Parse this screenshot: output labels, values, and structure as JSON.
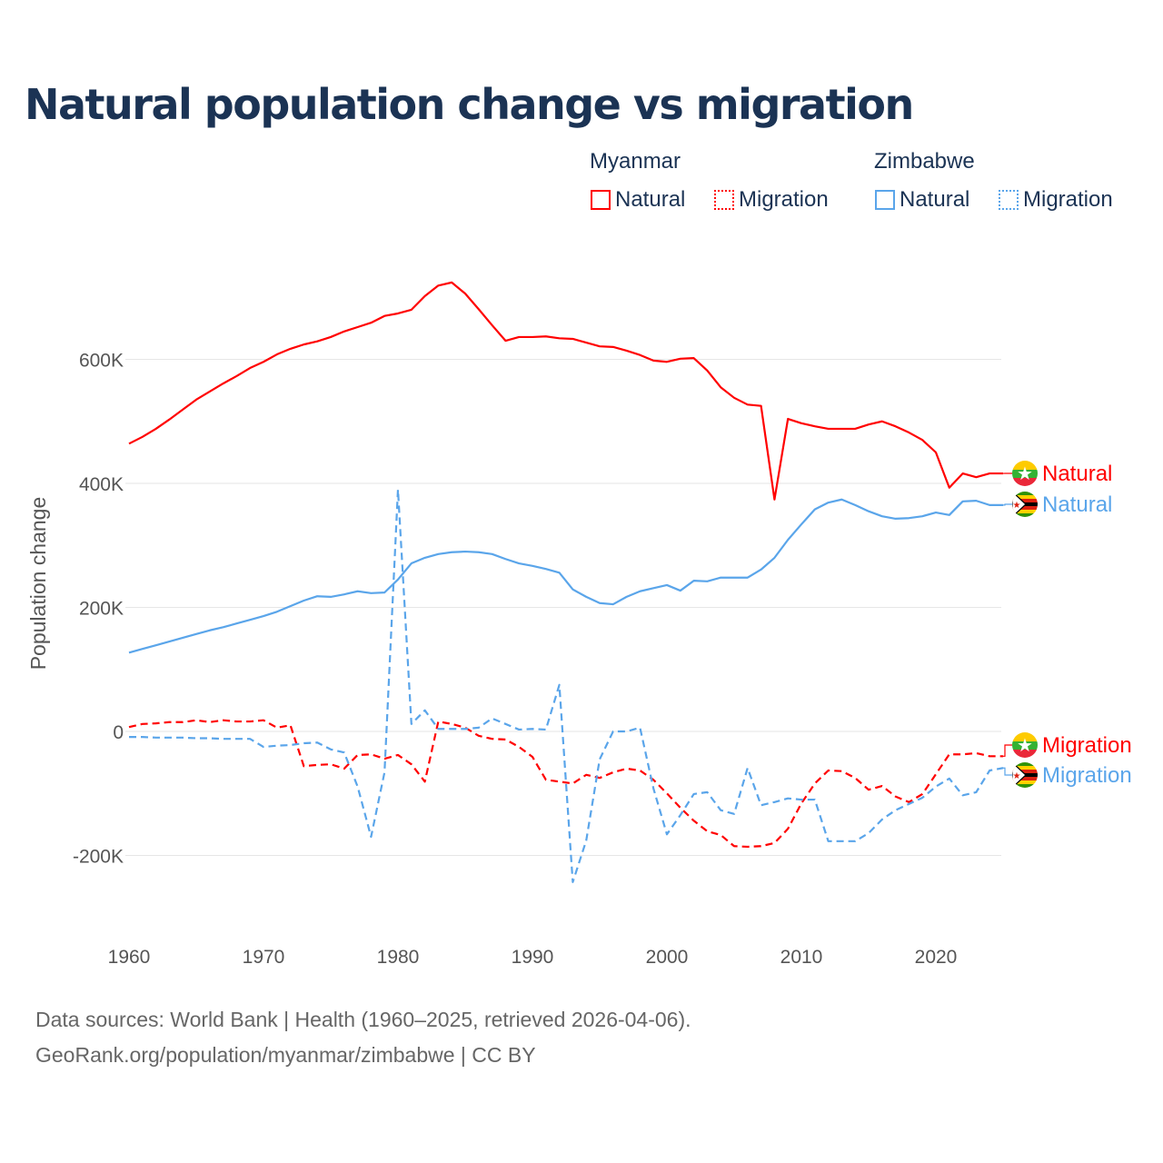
{
  "title": "Natural population change vs migration",
  "legend": {
    "groups": [
      {
        "name": "Myanmar",
        "color": "#ff0000",
        "items": [
          "Natural",
          "Migration"
        ]
      },
      {
        "name": "Zimbabwe",
        "color": "#5aa5ea",
        "items": [
          "Natural",
          "Migration"
        ]
      }
    ]
  },
  "footer": {
    "line1": "Data sources: World Bank | Health (1960–2025, retrieved 2026-04-06).",
    "line2": "GeoRank.org/population/myanmar/zimbabwe | CC BY"
  },
  "chart_data": {
    "type": "line",
    "title": "Natural population change vs migration",
    "xlabel": "",
    "ylabel": "Population change",
    "xlim": [
      1960,
      2025
    ],
    "ylim": [
      -300000,
      750000
    ],
    "x_ticks": [
      1960,
      1970,
      1980,
      1990,
      2000,
      2010,
      2020
    ],
    "y_ticks": [
      {
        "v": -200000,
        "label": "-200K"
      },
      {
        "v": 0,
        "label": "0"
      },
      {
        "v": 200000,
        "label": "200K"
      },
      {
        "v": 400000,
        "label": "400K"
      },
      {
        "v": 600000,
        "label": "600K"
      }
    ],
    "x_start": 1960,
    "series": [
      {
        "name": "Myanmar Natural",
        "end_label": "Natural",
        "color": "#ff0000",
        "dash": false,
        "values_k": [
          464,
          475,
          488,
          503,
          519,
          535,
          548,
          561,
          573,
          586,
          596,
          608,
          617,
          624,
          629,
          636,
          645,
          652,
          659,
          670,
          674,
          680,
          702,
          719,
          724,
          706,
          681,
          655,
          630,
          636,
          636,
          637,
          634,
          633,
          627,
          621,
          620,
          614,
          607,
          598,
          596,
          601,
          602,
          582,
          555,
          538,
          527,
          525,
          374,
          504,
          497,
          492,
          488,
          488,
          488,
          495,
          500,
          492,
          482,
          470,
          450,
          393,
          416,
          410,
          416,
          416
        ]
      },
      {
        "name": "Zimbabwe Natural",
        "end_label": "Natural",
        "color": "#5aa5ea",
        "dash": false,
        "values_k": [
          127,
          133,
          139,
          145,
          151,
          157,
          163,
          168,
          174,
          180,
          186,
          193,
          202,
          211,
          218,
          217,
          221,
          226,
          223,
          224,
          245,
          271,
          280,
          286,
          289,
          290,
          289,
          286,
          278,
          271,
          267,
          262,
          256,
          229,
          217,
          207,
          205,
          217,
          226,
          231,
          236,
          227,
          243,
          242,
          248,
          248,
          248,
          261,
          280,
          309,
          334,
          358,
          369,
          374,
          365,
          355,
          347,
          343,
          344,
          347,
          353,
          349,
          371,
          372,
          365,
          365
        ]
      },
      {
        "name": "Myanmar Migration",
        "end_label": "Migration",
        "color": "#ff0000",
        "dash": true,
        "values_k": [
          7,
          12,
          13,
          15,
          15,
          18,
          15,
          18,
          16,
          16,
          18,
          6,
          10,
          -56,
          -54,
          -53,
          -60,
          -38,
          -37,
          -44,
          -38,
          -53,
          -81,
          16,
          12,
          6,
          -7,
          -12,
          -13,
          -25,
          -41,
          -78,
          -81,
          -84,
          -70,
          -75,
          -66,
          -60,
          -63,
          -78,
          -100,
          -123,
          -144,
          -161,
          -167,
          -185,
          -186,
          -185,
          -180,
          -157,
          -116,
          -84,
          -63,
          -64,
          -75,
          -94,
          -88,
          -105,
          -114,
          -101,
          -69,
          -37,
          -37,
          -35,
          -40,
          -40
        ]
      },
      {
        "name": "Zimbabwe Migration",
        "end_label": "Migration",
        "color": "#5aa5ea",
        "dash": true,
        "values_k": [
          -9,
          -9,
          -10,
          -10,
          -10,
          -11,
          -11,
          -12,
          -12,
          -12,
          -25,
          -23,
          -22,
          -19,
          -18,
          -29,
          -34,
          -89,
          -170,
          -66,
          390,
          12,
          34,
          4,
          4,
          4,
          6,
          21,
          12,
          3,
          4,
          3,
          75,
          -243,
          -176,
          -45,
          0,
          0,
          6,
          -92,
          -166,
          -135,
          -101,
          -98,
          -127,
          -133,
          -59,
          -119,
          -114,
          -108,
          -110,
          -110,
          -177,
          -177,
          -177,
          -164,
          -142,
          -127,
          -117,
          -107,
          -89,
          -76,
          -103,
          -98,
          -63,
          -59
        ]
      }
    ],
    "grid": true,
    "legend_position": "top-right"
  }
}
